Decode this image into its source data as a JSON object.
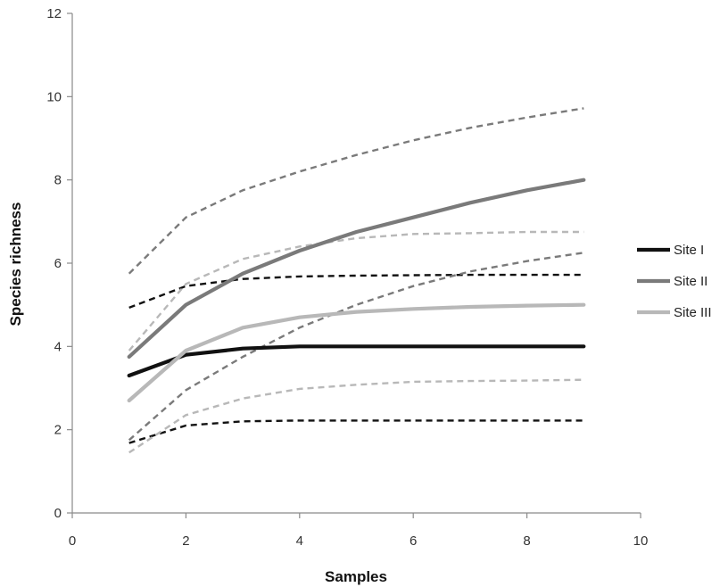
{
  "chart_data": {
    "type": "line",
    "title": "",
    "xlabel": "Samples",
    "ylabel": "Species richness",
    "xlim": [
      0,
      10
    ],
    "ylim": [
      0,
      12
    ],
    "xticks": [
      0,
      2,
      4,
      6,
      8,
      10
    ],
    "yticks": [
      0,
      2,
      4,
      6,
      8,
      10,
      12
    ],
    "grid": false,
    "legend_position": "right",
    "x": [
      1,
      2,
      3,
      4,
      5,
      6,
      7,
      8,
      9
    ],
    "series": [
      {
        "name": "Site I",
        "style": "solid",
        "color": "#111111",
        "values": [
          3.3,
          3.8,
          3.95,
          4.0,
          4.0,
          4.0,
          4.0,
          4.0,
          4.0
        ]
      },
      {
        "name": "Site II",
        "style": "solid",
        "color": "#7a7a7a",
        "values": [
          3.75,
          5.0,
          5.75,
          6.3,
          6.75,
          7.1,
          7.45,
          7.75,
          8.0
        ]
      },
      {
        "name": "Site III",
        "style": "solid",
        "color": "#b8b8b8",
        "values": [
          2.7,
          3.9,
          4.45,
          4.7,
          4.83,
          4.9,
          4.95,
          4.98,
          5.0
        ]
      },
      {
        "name": "",
        "style": "dashed",
        "color": "#111111",
        "values": [
          4.93,
          5.45,
          5.62,
          5.68,
          5.7,
          5.71,
          5.72,
          5.72,
          5.72
        ]
      },
      {
        "name": "",
        "style": "dashed",
        "color": "#111111",
        "values": [
          1.68,
          2.1,
          2.2,
          2.22,
          2.22,
          2.22,
          2.22,
          2.22,
          2.22
        ]
      },
      {
        "name": "",
        "style": "dashed",
        "color": "#7a7a7a",
        "values": [
          5.75,
          7.1,
          7.75,
          8.2,
          8.6,
          8.95,
          9.25,
          9.5,
          9.72
        ]
      },
      {
        "name": "",
        "style": "dashed",
        "color": "#7a7a7a",
        "values": [
          1.75,
          2.95,
          3.75,
          4.45,
          5.0,
          5.45,
          5.8,
          6.05,
          6.25
        ]
      },
      {
        "name": "",
        "style": "dashed",
        "color": "#b8b8b8",
        "values": [
          3.9,
          5.5,
          6.1,
          6.4,
          6.6,
          6.7,
          6.72,
          6.75,
          6.75
        ]
      },
      {
        "name": "",
        "style": "dashed",
        "color": "#b8b8b8",
        "values": [
          1.45,
          2.35,
          2.75,
          2.98,
          3.08,
          3.15,
          3.17,
          3.18,
          3.2
        ]
      }
    ]
  }
}
